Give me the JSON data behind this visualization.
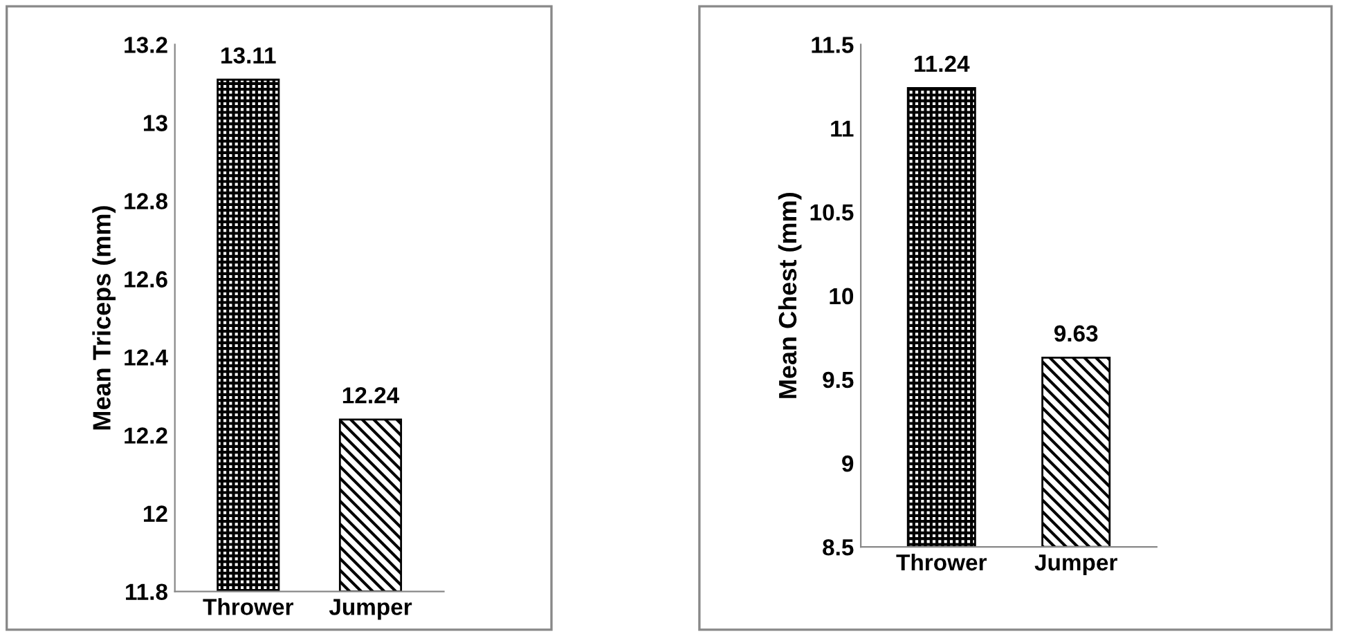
{
  "chart_data": [
    {
      "type": "bar",
      "ylabel": "Mean Triceps (mm)",
      "categories": [
        "Thrower",
        "Jumper"
      ],
      "values": [
        13.11,
        12.24
      ],
      "colors": [
        "#000000",
        "#000000"
      ],
      "ylim": [
        11.8,
        13.2
      ],
      "yticks": [
        11.8,
        12,
        12.2,
        12.4,
        12.6,
        12.8,
        13,
        13.2
      ],
      "data_labels": true,
      "grid": false,
      "legend": false
    },
    {
      "type": "bar",
      "ylabel": "Mean Chest (mm)",
      "categories": [
        "Thrower",
        "Jumper"
      ],
      "values": [
        11.24,
        9.63
      ],
      "colors": [
        "#000000",
        "#000000"
      ],
      "ylim": [
        8.5,
        11.5
      ],
      "yticks": [
        8.5,
        9,
        9.5,
        10,
        10.5,
        11,
        11.5
      ],
      "data_labels": true,
      "grid": false,
      "legend": false
    }
  ]
}
